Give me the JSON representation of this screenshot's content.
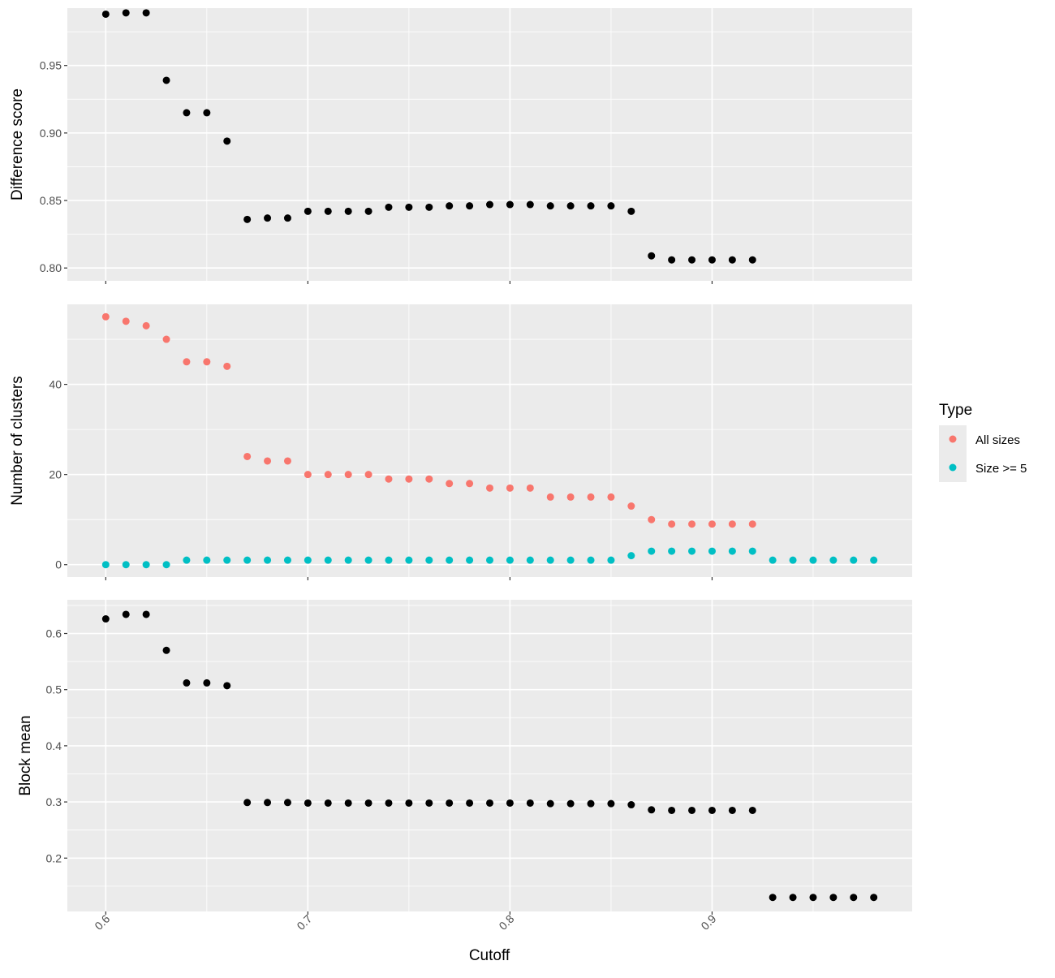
{
  "chart_data": {
    "type": "scatter",
    "xlabel": "Cutoff",
    "x_ticks": [
      0.6,
      0.7,
      0.8,
      0.9
    ],
    "x_tick_labels": [
      "0.6",
      "0.7",
      "0.8",
      "0.9"
    ],
    "xlim": [
      0.581,
      0.999
    ],
    "grid": true,
    "legend": {
      "title": "Type",
      "position": "right",
      "entries": [
        {
          "label": "All sizes",
          "color": "#F8766D"
        },
        {
          "label": "Size >= 5",
          "color": "#00BFC4"
        }
      ]
    },
    "panels": [
      {
        "ylabel": "Difference score",
        "ylim": [
          0.7905,
          0.9925
        ],
        "y_ticks": [
          0.8,
          0.85,
          0.9,
          0.95
        ],
        "y_tick_labels": [
          "0.80",
          "0.85",
          "0.90",
          "0.95"
        ],
        "series": [
          {
            "color": "#000000",
            "x": [
              0.6,
              0.61,
              0.62,
              0.63,
              0.64,
              0.65,
              0.66,
              0.67,
              0.68,
              0.69,
              0.7,
              0.71,
              0.72,
              0.73,
              0.74,
              0.75,
              0.76,
              0.77,
              0.78,
              0.79,
              0.8,
              0.81,
              0.82,
              0.83,
              0.84,
              0.85,
              0.86,
              0.87,
              0.88,
              0.89,
              0.9,
              0.91,
              0.92
            ],
            "y": [
              0.988,
              0.989,
              0.989,
              0.939,
              0.915,
              0.915,
              0.894,
              0.836,
              0.837,
              0.837,
              0.842,
              0.842,
              0.842,
              0.842,
              0.845,
              0.845,
              0.845,
              0.846,
              0.846,
              0.847,
              0.847,
              0.847,
              0.846,
              0.846,
              0.846,
              0.846,
              0.842,
              0.809,
              0.806,
              0.806,
              0.806,
              0.806,
              0.806
            ]
          }
        ]
      },
      {
        "ylabel": "Number of clusters",
        "ylim": [
          -2.75,
          57.75
        ],
        "y_ticks": [
          0,
          20,
          40
        ],
        "y_tick_labels": [
          "0",
          "20",
          "40"
        ],
        "series": [
          {
            "name": "All sizes",
            "color": "#F8766D",
            "x": [
              0.6,
              0.61,
              0.62,
              0.63,
              0.64,
              0.65,
              0.66,
              0.67,
              0.68,
              0.69,
              0.7,
              0.71,
              0.72,
              0.73,
              0.74,
              0.75,
              0.76,
              0.77,
              0.78,
              0.79,
              0.8,
              0.81,
              0.82,
              0.83,
              0.84,
              0.85,
              0.86,
              0.87,
              0.88,
              0.89,
              0.9,
              0.91,
              0.92
            ],
            "y": [
              55,
              54,
              53,
              50,
              45,
              45,
              44,
              24,
              23,
              23,
              20,
              20,
              20,
              20,
              19,
              19,
              19,
              18,
              18,
              17,
              17,
              17,
              15,
              15,
              15,
              15,
              13,
              10,
              9,
              9,
              9,
              9,
              9
            ]
          },
          {
            "name": "Size >= 5",
            "color": "#00BFC4",
            "x": [
              0.6,
              0.61,
              0.62,
              0.63,
              0.64,
              0.65,
              0.66,
              0.67,
              0.68,
              0.69,
              0.7,
              0.71,
              0.72,
              0.73,
              0.74,
              0.75,
              0.76,
              0.77,
              0.78,
              0.79,
              0.8,
              0.81,
              0.82,
              0.83,
              0.84,
              0.85,
              0.86,
              0.87,
              0.88,
              0.89,
              0.9,
              0.91,
              0.92,
              0.93,
              0.94,
              0.95,
              0.96,
              0.97,
              0.98
            ],
            "y": [
              0,
              0,
              0,
              0,
              1,
              1,
              1,
              1,
              1,
              1,
              1,
              1,
              1,
              1,
              1,
              1,
              1,
              1,
              1,
              1,
              1,
              1,
              1,
              1,
              1,
              1,
              2,
              3,
              3,
              3,
              3,
              3,
              3,
              1,
              1,
              1,
              1,
              1,
              1
            ]
          }
        ]
      },
      {
        "ylabel": "Block mean",
        "ylim": [
          0.105,
          0.66
        ],
        "y_ticks": [
          0.2,
          0.3,
          0.4,
          0.5,
          0.6
        ],
        "y_tick_labels": [
          "0.2",
          "0.3",
          "0.4",
          "0.5",
          "0.6"
        ],
        "series": [
          {
            "color": "#000000",
            "x": [
              0.6,
              0.61,
              0.62,
              0.63,
              0.64,
              0.65,
              0.66,
              0.67,
              0.68,
              0.69,
              0.7,
              0.71,
              0.72,
              0.73,
              0.74,
              0.75,
              0.76,
              0.77,
              0.78,
              0.79,
              0.8,
              0.81,
              0.82,
              0.83,
              0.84,
              0.85,
              0.86,
              0.87,
              0.88,
              0.89,
              0.9,
              0.91,
              0.92,
              0.93,
              0.94,
              0.95,
              0.96,
              0.97,
              0.98
            ],
            "y": [
              0.626,
              0.634,
              0.634,
              0.57,
              0.512,
              0.512,
              0.507,
              0.299,
              0.299,
              0.299,
              0.298,
              0.298,
              0.298,
              0.298,
              0.298,
              0.298,
              0.298,
              0.298,
              0.298,
              0.298,
              0.298,
              0.298,
              0.297,
              0.297,
              0.297,
              0.297,
              0.295,
              0.286,
              0.285,
              0.285,
              0.285,
              0.285,
              0.285,
              0.13,
              0.13,
              0.13,
              0.13,
              0.13,
              0.13
            ]
          }
        ]
      }
    ]
  }
}
